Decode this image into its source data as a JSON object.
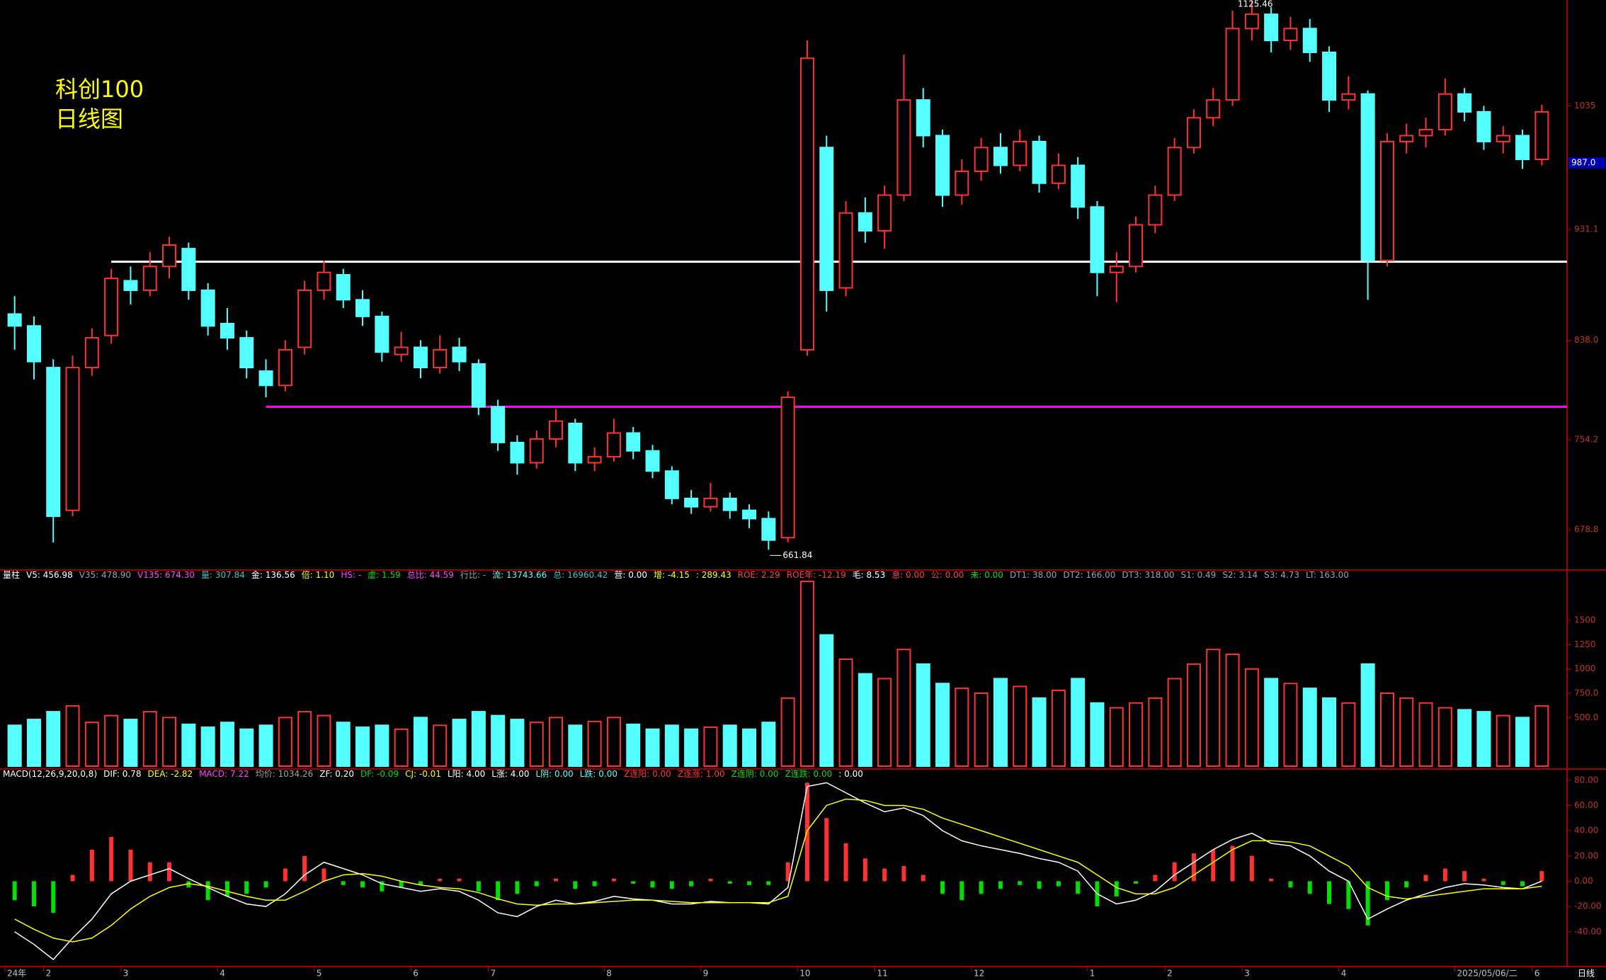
{
  "chart_data": [
    {
      "type": "candlestick",
      "title": "科创100",
      "subtitle": "日线图",
      "x_end_label": "日线",
      "up_color": "#ff3232",
      "down_color": "#54ffff",
      "categories": [
        "24年",
        null,
        "2",
        null,
        null,
        null,
        "3",
        null,
        null,
        null,
        null,
        "4",
        null,
        null,
        null,
        null,
        "5",
        null,
        null,
        null,
        null,
        "6",
        null,
        null,
        null,
        "7",
        null,
        null,
        null,
        null,
        null,
        "8",
        null,
        null,
        null,
        null,
        "9",
        null,
        null,
        null,
        null,
        "10",
        null,
        null,
        null,
        "11",
        null,
        null,
        null,
        null,
        "12",
        null,
        null,
        null,
        null,
        null,
        "1",
        null,
        null,
        null,
        "2",
        null,
        null,
        null,
        "3",
        null,
        null,
        null,
        null,
        "4",
        null,
        null,
        null,
        null,
        null,
        "2025/05/06/二",
        null,
        null,
        null,
        "6"
      ],
      "ohlc": [
        [
          860,
          875,
          830,
          850
        ],
        [
          850,
          858,
          805,
          820
        ],
        [
          815,
          822,
          668,
          690
        ],
        [
          695,
          825,
          690,
          815
        ],
        [
          815,
          848,
          808,
          840
        ],
        [
          842,
          898,
          835,
          890
        ],
        [
          888,
          900,
          868,
          880
        ],
        [
          880,
          912,
          875,
          900
        ],
        [
          900,
          925,
          890,
          918
        ],
        [
          915,
          920,
          872,
          880
        ],
        [
          880,
          886,
          842,
          850
        ],
        [
          852,
          865,
          830,
          840
        ],
        [
          840,
          846,
          806,
          815
        ],
        [
          812,
          822,
          790,
          800
        ],
        [
          800,
          838,
          795,
          830
        ],
        [
          832,
          888,
          826,
          880
        ],
        [
          880,
          905,
          872,
          895
        ],
        [
          893,
          898,
          865,
          872
        ],
        [
          872,
          880,
          850,
          858
        ],
        [
          858,
          862,
          820,
          828
        ],
        [
          826,
          845,
          820,
          832
        ],
        [
          832,
          838,
          806,
          815
        ],
        [
          815,
          842,
          810,
          830
        ],
        [
          832,
          840,
          812,
          820
        ],
        [
          818,
          822,
          775,
          782
        ],
        [
          782,
          788,
          745,
          752
        ],
        [
          752,
          758,
          725,
          735
        ],
        [
          735,
          762,
          730,
          755
        ],
        [
          755,
          780,
          748,
          770
        ],
        [
          768,
          772,
          728,
          735
        ],
        [
          735,
          748,
          728,
          740
        ],
        [
          740,
          772,
          736,
          760
        ],
        [
          760,
          765,
          738,
          745
        ],
        [
          745,
          750,
          722,
          728
        ],
        [
          728,
          732,
          700,
          705
        ],
        [
          705,
          712,
          692,
          698
        ],
        [
          698,
          718,
          694,
          705
        ],
        [
          705,
          710,
          688,
          695
        ],
        [
          695,
          700,
          680,
          688
        ],
        [
          688,
          694,
          661.84,
          670
        ],
        [
          672,
          795,
          668,
          790
        ],
        [
          830,
          1090,
          825,
          1075
        ],
        [
          1000,
          1010,
          862,
          880
        ],
        [
          882,
          955,
          875,
          945
        ],
        [
          945,
          958,
          920,
          930
        ],
        [
          930,
          968,
          915,
          960
        ],
        [
          960,
          1078,
          955,
          1040
        ],
        [
          1040,
          1050,
          1000,
          1010
        ],
        [
          1010,
          1015,
          950,
          960
        ],
        [
          960,
          990,
          952,
          980
        ],
        [
          980,
          1008,
          972,
          1000
        ],
        [
          1000,
          1012,
          978,
          985
        ],
        [
          985,
          1015,
          980,
          1005
        ],
        [
          1005,
          1010,
          962,
          970
        ],
        [
          970,
          995,
          965,
          985
        ],
        [
          985,
          992,
          940,
          950
        ],
        [
          950,
          955,
          875,
          895
        ],
        [
          895,
          912,
          870,
          900
        ],
        [
          900,
          942,
          895,
          935
        ],
        [
          935,
          968,
          928,
          960
        ],
        [
          960,
          1008,
          955,
          1000
        ],
        [
          1000,
          1032,
          995,
          1025
        ],
        [
          1025,
          1050,
          1018,
          1040
        ],
        [
          1040,
          1115,
          1035,
          1100
        ],
        [
          1100,
          1125.46,
          1090,
          1112
        ],
        [
          1112,
          1118,
          1080,
          1090
        ],
        [
          1090,
          1110,
          1082,
          1100
        ],
        [
          1100,
          1108,
          1072,
          1080
        ],
        [
          1080,
          1085,
          1030,
          1040
        ],
        [
          1040,
          1060,
          1032,
          1045
        ],
        [
          1045,
          1048,
          872,
          905
        ],
        [
          905,
          1012,
          900,
          1005
        ],
        [
          1005,
          1020,
          995,
          1010
        ],
        [
          1010,
          1025,
          1000,
          1015
        ],
        [
          1015,
          1058,
          1010,
          1045
        ],
        [
          1045,
          1050,
          1022,
          1030
        ],
        [
          1030,
          1035,
          998,
          1005
        ],
        [
          1005,
          1018,
          995,
          1010
        ],
        [
          1010,
          1015,
          982,
          990
        ],
        [
          990,
          1036,
          985,
          1030
        ]
      ],
      "ylim": [
        646,
        1124
      ],
      "yticks": [
        1035,
        931.1,
        {
          "value": 838,
          "label": "838.0"
        },
        754.2,
        678.8
      ],
      "price_marker": {
        "value": 987,
        "label": "987.0",
        "color": "#0000b0"
      },
      "hlines": [
        {
          "value": 904,
          "color": "#ffffff",
          "start": 5
        },
        {
          "value": 782,
          "color": "#ff00ff",
          "start": 13
        }
      ]
    },
    {
      "type": "volume",
      "header": [
        {
          "text": "量柱",
          "color": "#ffffff"
        },
        {
          "text": "V5: 456.98",
          "color": "#ffffff"
        },
        {
          "text": "V35: 478.90",
          "color": "#a0a0a0"
        },
        {
          "text": "V135: 674.30",
          "color": "#ff40ff"
        },
        {
          "text": "量: 307.84",
          "color": "#40c0c0"
        },
        {
          "text": "金: 136.56",
          "color": "#ffffff"
        },
        {
          "text": "倍: 1.10",
          "color": "#ffff00"
        },
        {
          "text": "HS: -",
          "color": "#ff40ff"
        },
        {
          "text": "虚: 1.59",
          "color": "#00e000"
        },
        {
          "text": "总比: 44.59",
          "color": "#ff40ff"
        },
        {
          "text": "行比: -",
          "color": "#a0a0a0"
        },
        {
          "text": "流: 13743.66",
          "color": "#54ffff"
        },
        {
          "text": "总: 16960.42",
          "color": "#40c0c0"
        },
        {
          "text": "营: 0.00",
          "color": "#ffffff"
        },
        {
          "text": "增: -4.15",
          "color": "#ffff00"
        },
        {
          "text": ": 289.43",
          "color": "#ffff00"
        },
        {
          "text": "ROE: 2.29",
          "color": "#ff4040"
        },
        {
          "text": "ROE年: -12.19",
          "color": "#ff4040"
        },
        {
          "text": "毛: 8.53",
          "color": "#ffffff"
        },
        {
          "text": "息: 0.00",
          "color": "#ff4040"
        },
        {
          "text": "公: 0.00",
          "color": "#ff4040"
        },
        {
          "text": "未: 0.00",
          "color": "#00e000"
        },
        {
          "text": "DT1: 38.00",
          "color": "#a0a0a0"
        },
        {
          "text": "DT2: 166.00",
          "color": "#a0a0a0"
        },
        {
          "text": "DT3: 318.00",
          "color": "#a0a0a0"
        },
        {
          "text": "S1: 0.49",
          "color": "#a0a0a0"
        },
        {
          "text": "S2: 3.14",
          "color": "#a0a0a0"
        },
        {
          "text": "S3: 4.73",
          "color": "#a0a0a0"
        },
        {
          "text": "LT: 163.00",
          "color": "#a0a0a0"
        }
      ],
      "values": [
        420,
        480,
        560,
        620,
        450,
        520,
        480,
        560,
        500,
        430,
        400,
        450,
        380,
        420,
        500,
        560,
        520,
        450,
        400,
        420,
        380,
        500,
        420,
        480,
        560,
        520,
        480,
        450,
        500,
        420,
        460,
        500,
        430,
        380,
        420,
        380,
        400,
        420,
        380,
        450,
        700,
        1900,
        1350,
        1100,
        950,
        900,
        1200,
        1050,
        850,
        800,
        750,
        900,
        820,
        700,
        780,
        900,
        650,
        600,
        650,
        700,
        900,
        1050,
        1200,
        1150,
        1000,
        900,
        850,
        800,
        700,
        650,
        1050,
        750,
        700,
        650,
        600,
        580,
        560,
        520,
        500,
        620
      ],
      "ylim": [
        0,
        1930
      ],
      "yticks": [
        1500,
        1250,
        1000,
        {
          "value": 750,
          "label": "750.0"
        },
        {
          "value": 500,
          "label": "500.0"
        }
      ]
    },
    {
      "type": "macd",
      "header": [
        {
          "text": "MACD(12,26,9,20,0,8)",
          "color": "#ffffff"
        },
        {
          "text": "DIF: 0.78",
          "color": "#ffffff"
        },
        {
          "text": "DEA: -2.82",
          "color": "#ffff00"
        },
        {
          "text": "MACD: 7.22",
          "color": "#ff40ff"
        },
        {
          "text": "均价: 1034.26",
          "color": "#a0a0a0"
        },
        {
          "text": "ZF: 0.20",
          "color": "#ffffff"
        },
        {
          "text": "DF: -0.09",
          "color": "#00e000"
        },
        {
          "text": "CJ: -0.01",
          "color": "#ffff00"
        },
        {
          "text": "L阳: 4.00",
          "color": "#ffffff"
        },
        {
          "text": "L涨: 4.00",
          "color": "#ffffff"
        },
        {
          "text": "L阴: 0.00",
          "color": "#54ffff"
        },
        {
          "text": "L跌: 0.00",
          "color": "#54ffff"
        },
        {
          "text": "Z连阳: 0.00",
          "color": "#ff3232"
        },
        {
          "text": "Z连涨: 1.00",
          "color": "#ff3232"
        },
        {
          "text": "Z连阴: 0.00",
          "color": "#00e000"
        },
        {
          "text": "Z连跌: 0.00",
          "color": "#00e000"
        },
        {
          "text": ": 0.00",
          "color": "#ffffff"
        }
      ],
      "hist": {
        "pos_color": "#ff3232",
        "neg_color": "#00e000",
        "values": [
          -15,
          -20,
          -25,
          5,
          25,
          35,
          25,
          15,
          15,
          -5,
          -15,
          -12,
          -10,
          -5,
          10,
          20,
          10,
          -3,
          -5,
          -8,
          -5,
          -3,
          2,
          2,
          -8,
          -15,
          -10,
          -4,
          2,
          -6,
          -4,
          2,
          -2,
          -5,
          -6,
          -4,
          2,
          -2,
          -3,
          -3,
          15,
          78,
          50,
          30,
          18,
          10,
          12,
          5,
          -10,
          -15,
          -10,
          -6,
          -3,
          -6,
          -4,
          -10,
          -20,
          -12,
          -2,
          5,
          15,
          22,
          25,
          28,
          20,
          2,
          -5,
          -10,
          -18,
          -22,
          -35,
          -15,
          -5,
          5,
          10,
          8,
          2,
          -3,
          -4,
          8
        ]
      },
      "series": [
        {
          "color": "#ffffff",
          "values": [
            -40,
            -50,
            -62,
            -45,
            -30,
            -10,
            0,
            5,
            10,
            2,
            -5,
            -12,
            -18,
            -20,
            -10,
            5,
            15,
            10,
            5,
            -2,
            -5,
            -8,
            -6,
            -8,
            -15,
            -25,
            -28,
            -20,
            -15,
            -18,
            -16,
            -12,
            -14,
            -15,
            -18,
            -18,
            -16,
            -17,
            -17,
            -18,
            -5,
            75,
            78,
            70,
            62,
            55,
            58,
            52,
            40,
            32,
            28,
            25,
            22,
            18,
            15,
            8,
            -10,
            -18,
            -15,
            -8,
            5,
            15,
            25,
            33,
            38,
            30,
            28,
            20,
            8,
            0,
            -30,
            -22,
            -15,
            -10,
            -5,
            -2,
            -3,
            -5,
            -6,
            0
          ]
        },
        {
          "color": "#ffff00",
          "values": [
            -30,
            -38,
            -45,
            -48,
            -45,
            -35,
            -22,
            -12,
            -5,
            -2,
            -4,
            -8,
            -12,
            -15,
            -15,
            -8,
            0,
            5,
            6,
            4,
            0,
            -3,
            -5,
            -6,
            -9,
            -14,
            -18,
            -19,
            -18,
            -18,
            -17,
            -16,
            -15,
            -15,
            -16,
            -17,
            -17,
            -17,
            -17,
            -17,
            -12,
            40,
            60,
            65,
            64,
            60,
            60,
            57,
            50,
            45,
            40,
            35,
            30,
            25,
            20,
            15,
            5,
            -5,
            -10,
            -10,
            -5,
            5,
            15,
            25,
            32,
            32,
            31,
            28,
            20,
            12,
            -5,
            -12,
            -14,
            -12,
            -10,
            -8,
            -6,
            -6,
            -6,
            -4
          ]
        }
      ],
      "ylim": [
        -67,
        81
      ],
      "yticks": [
        {
          "value": 80,
          "label": "80.00"
        },
        {
          "value": 60,
          "label": "60.00"
        },
        {
          "value": 40,
          "label": "40.00"
        },
        {
          "value": 20,
          "label": "20.00"
        },
        {
          "value": 0,
          "label": "0.00"
        },
        {
          "value": -20,
          "label": "-20.00"
        },
        {
          "value": -40,
          "label": "-40.00"
        }
      ]
    }
  ]
}
